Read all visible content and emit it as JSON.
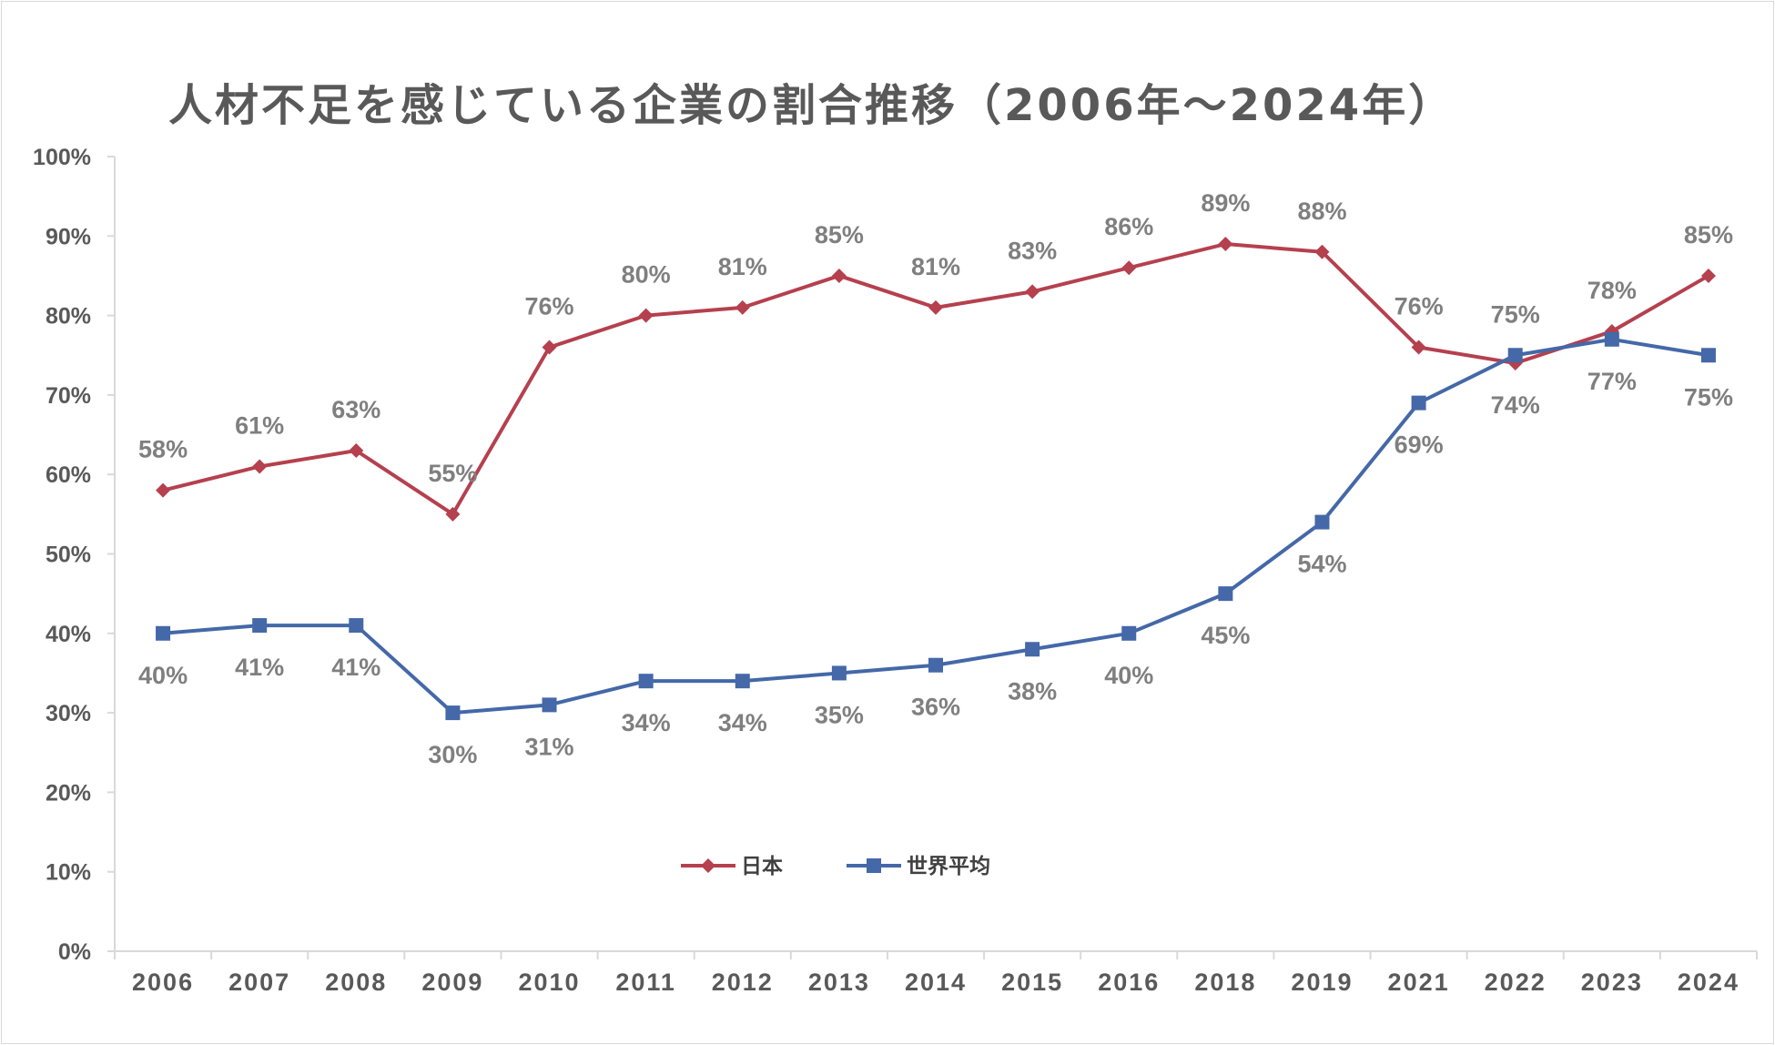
{
  "chart_data": {
    "type": "line",
    "title": "人材不足を感じている企業の割合推移（2006年〜2024年）",
    "categories": [
      "2006",
      "2007",
      "2008",
      "2009",
      "2010",
      "2011",
      "2012",
      "2013",
      "2014",
      "2015",
      "2016",
      "2018",
      "2019",
      "2021",
      "2022",
      "2023",
      "2024"
    ],
    "ylim": [
      0,
      100
    ],
    "yticks": [
      "0%",
      "10%",
      "20%",
      "30%",
      "40%",
      "50%",
      "60%",
      "70%",
      "80%",
      "90%",
      "100%"
    ],
    "grid": false,
    "legend_position": "bottom-center",
    "series": [
      {
        "name": "日本",
        "color": "#b5404e",
        "marker": "diamond",
        "values": [
          58,
          61,
          63,
          55,
          76,
          80,
          81,
          85,
          81,
          83,
          86,
          89,
          88,
          76,
          74,
          78,
          85
        ],
        "labels": [
          "58%",
          "61%",
          "63%",
          "55%",
          "76%",
          "80%",
          "81%",
          "85%",
          "81%",
          "83%",
          "86%",
          "89%",
          "88%",
          "76%",
          "74%",
          "78%",
          "85%"
        ]
      },
      {
        "name": "世界平均",
        "color": "#4468a8",
        "marker": "square",
        "values": [
          40,
          41,
          41,
          30,
          31,
          34,
          34,
          35,
          36,
          38,
          40,
          45,
          54,
          69,
          75,
          77,
          75
        ],
        "labels": [
          "40%",
          "41%",
          "41%",
          "30%",
          "31%",
          "34%",
          "34%",
          "35%",
          "36%",
          "38%",
          "40%",
          "45%",
          "54%",
          "69%",
          "75%",
          "77%",
          "75%"
        ]
      }
    ]
  }
}
